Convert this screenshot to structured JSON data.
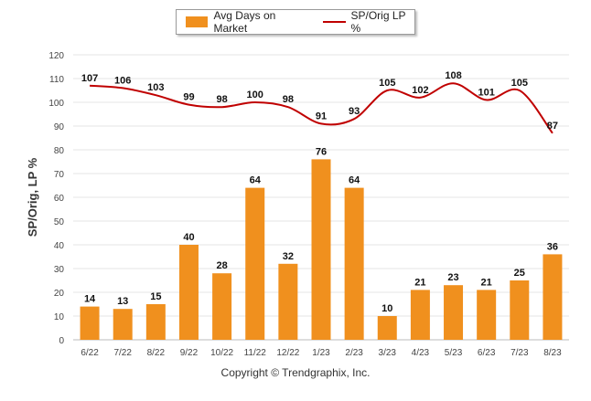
{
  "legend": {
    "bar_label": "Avg Days on Market",
    "line_label": "SP/Orig LP %"
  },
  "footer": "Copyright © Trendgraphix, Inc.",
  "chart_data": {
    "type": "bar",
    "categories": [
      "6/22",
      "7/22",
      "8/22",
      "9/22",
      "10/22",
      "11/22",
      "12/22",
      "1/23",
      "2/23",
      "3/23",
      "4/23",
      "5/23",
      "6/23",
      "7/23",
      "8/23"
    ],
    "series": [
      {
        "name": "Avg Days on Market",
        "type": "bar",
        "color": "#f0901e",
        "values": [
          14,
          13,
          15,
          40,
          28,
          64,
          32,
          76,
          64,
          10,
          21,
          23,
          21,
          25,
          36
        ]
      },
      {
        "name": "SP/Orig LP %",
        "type": "line",
        "color": "#c00000",
        "values": [
          107,
          106,
          103,
          99,
          98,
          100,
          98,
          91,
          93,
          105,
          102,
          108,
          101,
          105,
          87
        ]
      }
    ],
    "ylabel": "SP/Orig, LP %",
    "ylim": [
      0,
      120
    ],
    "yticks": [
      0,
      10,
      20,
      30,
      40,
      50,
      60,
      70,
      80,
      90,
      100,
      110,
      120
    ],
    "grid": true,
    "legend_position": "top"
  }
}
